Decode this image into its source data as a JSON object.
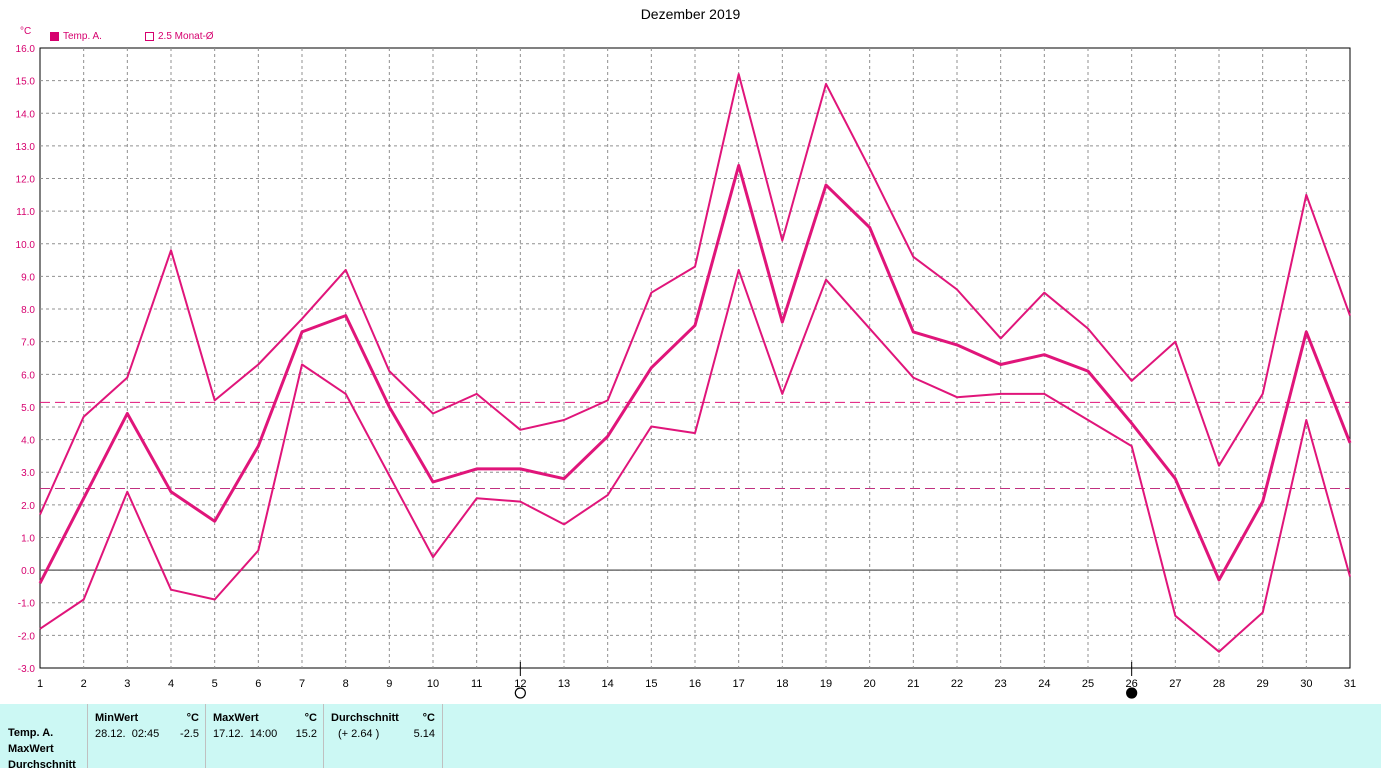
{
  "chart_data": {
    "type": "line",
    "title": "Dezember 2019",
    "y_unit": "°C",
    "ylim": [
      -3.0,
      16.0
    ],
    "ytick_step": 1.0,
    "x": [
      1,
      2,
      3,
      4,
      5,
      6,
      7,
      8,
      9,
      10,
      11,
      12,
      13,
      14,
      15,
      16,
      17,
      18,
      19,
      20,
      21,
      22,
      23,
      24,
      25,
      26,
      27,
      28,
      29,
      30,
      31
    ],
    "grid": true,
    "legend": [
      {
        "label": "Temp. A.",
        "marker": "filled"
      },
      {
        "label": "2.5 Monat-Ø",
        "marker": "hollow"
      }
    ],
    "series": [
      {
        "name": "Temp. A.",
        "role": "mean",
        "values": [
          -0.4,
          2.2,
          4.8,
          2.4,
          1.5,
          3.8,
          7.3,
          7.8,
          5.0,
          2.7,
          3.1,
          3.1,
          2.8,
          4.1,
          6.2,
          7.5,
          12.4,
          7.6,
          11.8,
          10.5,
          7.3,
          6.9,
          6.3,
          6.6,
          6.1,
          4.5,
          2.8,
          -0.3,
          2.1,
          7.3,
          3.9
        ]
      },
      {
        "role": "max",
        "values": [
          1.7,
          4.7,
          5.9,
          9.8,
          5.2,
          6.3,
          7.7,
          9.2,
          6.1,
          4.8,
          5.4,
          4.3,
          4.6,
          5.2,
          8.5,
          9.3,
          15.2,
          10.1,
          14.9,
          12.3,
          9.6,
          8.6,
          7.1,
          8.5,
          7.4,
          5.8,
          7.0,
          3.2,
          5.4,
          11.5,
          7.8
        ]
      },
      {
        "role": "min",
        "values": [
          -1.8,
          -0.9,
          2.4,
          -0.6,
          -0.9,
          0.6,
          6.3,
          5.4,
          2.9,
          0.4,
          2.2,
          2.1,
          1.4,
          2.3,
          4.4,
          4.2,
          9.2,
          5.4,
          8.9,
          7.4,
          5.9,
          5.3,
          5.4,
          5.4,
          4.6,
          3.8,
          -1.4,
          -2.5,
          -1.3,
          4.6,
          -0.2
        ]
      }
    ],
    "reference_lines": [
      {
        "value": 5.14,
        "style": "dashed"
      },
      {
        "value": 2.5,
        "style": "dashed"
      }
    ],
    "moon_markers": [
      {
        "day": 12,
        "phase": "full"
      },
      {
        "day": 26,
        "phase": "new"
      }
    ]
  },
  "colors": {
    "series": "#e0157a",
    "legend_text": "#d6006e",
    "ref_line_mean": "#e0157a",
    "ref_line_avg": "#c0307f",
    "grid": "#909090",
    "axis": "#000000",
    "stats_bg": "#ccf8f4"
  },
  "stats": {
    "row_labels": [
      "Temp. A.",
      "MaxWert",
      "Durchschnitt"
    ],
    "min": {
      "header": "MinWert",
      "unit": "°C",
      "when": "28.12.  02:45",
      "value": "-2.5"
    },
    "max": {
      "header": "MaxWert",
      "unit": "°C",
      "when": "17.12.  14:00",
      "value": "15.2"
    },
    "avg": {
      "header": "Durchschnitt",
      "unit": "°C",
      "when": "(+ 2.64 )",
      "value": "5.14"
    }
  }
}
